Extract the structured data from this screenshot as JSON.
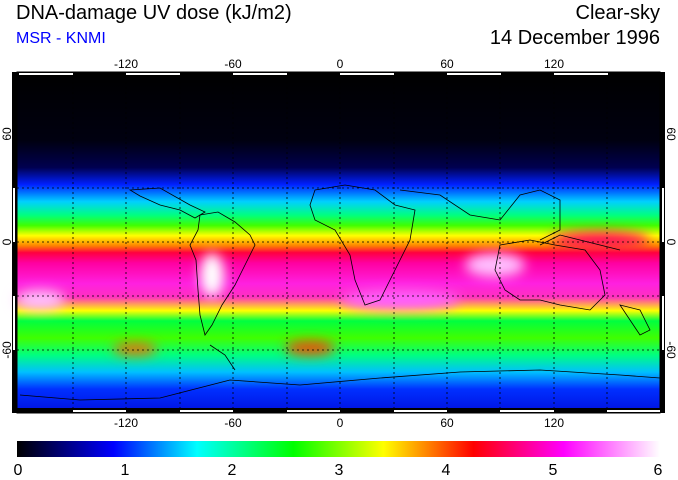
{
  "header": {
    "title": "DNA-damage UV dose (kJ/m2)",
    "source": "MSR - KNMI",
    "condition": "Clear-sky",
    "date": "14 December 1996"
  },
  "map": {
    "lon_ticks": [
      "-120",
      "-60",
      "0",
      "60",
      "120"
    ],
    "lat_ticks": [
      "60",
      "0",
      "-60"
    ]
  },
  "colorbar": {
    "labels": [
      "0",
      "1",
      "2",
      "3",
      "4",
      "5",
      "6"
    ],
    "colors": [
      "#000000",
      "#0000ff",
      "#00ffff",
      "#00ff00",
      "#ffff00",
      "#ff0000",
      "#ff00ff",
      "#ffffff"
    ]
  }
}
